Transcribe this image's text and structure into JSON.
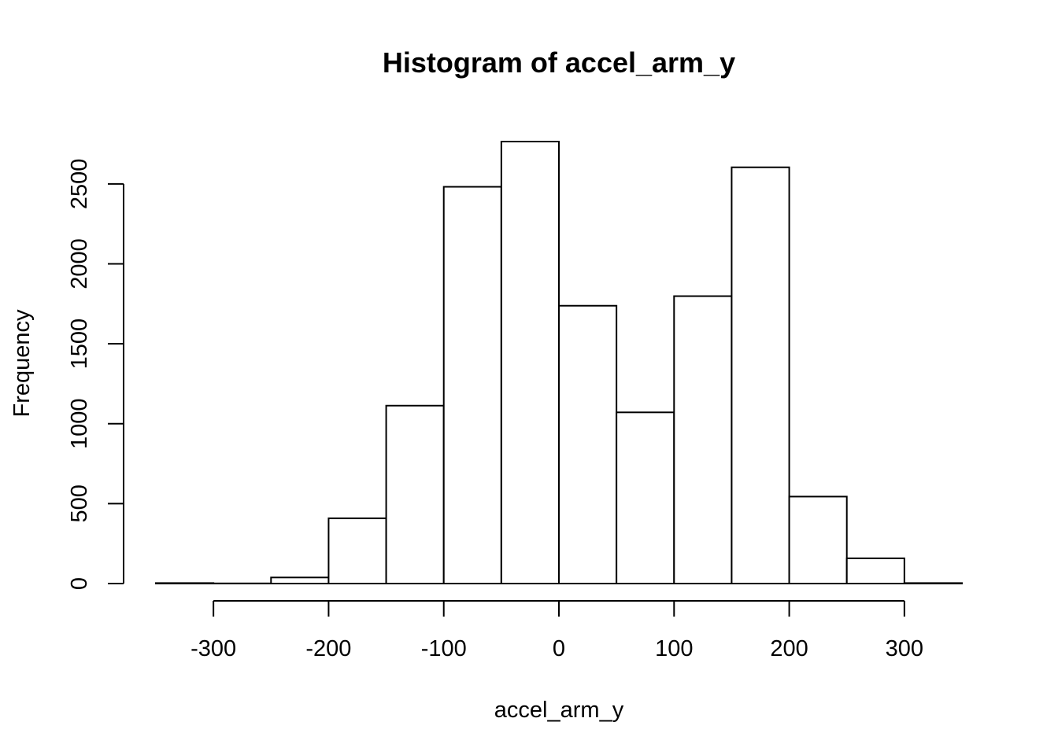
{
  "chart_data": {
    "type": "bar",
    "subtype": "histogram",
    "title": "Histogram of accel_arm_y",
    "xlabel": "accel_arm_y",
    "ylabel": "Frequency",
    "bin_edges": [
      -350,
      -300,
      -250,
      -200,
      -150,
      -100,
      -50,
      0,
      50,
      100,
      150,
      200,
      250,
      300,
      350
    ],
    "values": [
      3,
      1,
      38,
      408,
      1113,
      2482,
      2765,
      1738,
      1071,
      1798,
      2604,
      544,
      158,
      3
    ],
    "xlim": [
      -350,
      350
    ],
    "ylim": [
      0,
      2765
    ],
    "x_ticks": [
      -300,
      -200,
      -100,
      0,
      100,
      200,
      300
    ],
    "x_tick_labels": [
      "-300",
      "-200",
      "-100",
      "0",
      "100",
      "200",
      "300"
    ],
    "y_ticks": [
      0,
      500,
      1000,
      1500,
      2000,
      2500
    ],
    "y_tick_labels": [
      "0",
      "500",
      "1000",
      "1500",
      "2000",
      "2500"
    ],
    "grid": false,
    "legend": "none",
    "bar_fill": "#ffffff",
    "bar_stroke": "#000000"
  }
}
